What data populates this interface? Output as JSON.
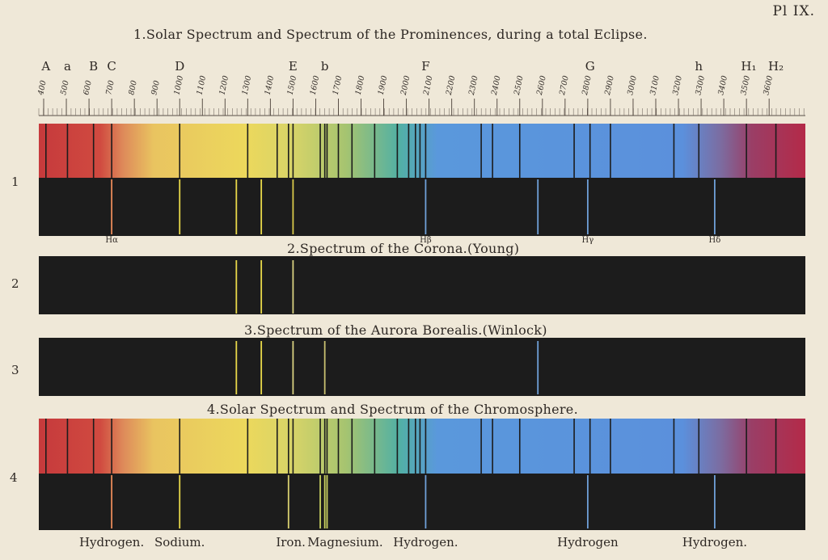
{
  "plate_label": "Pl IX.",
  "headings": [
    "1.Solar Spectrum and Spectrum of the Prominences, during a total Eclipse.",
    "2.Spectrum of the Corona.(Young)",
    "3.Spectrum of the Aurora Borealis.(Winlock)",
    "4.Solar Spectrum and Spectrum of the Chromosphere."
  ],
  "row_numbers": [
    "1",
    "2",
    "3",
    "4"
  ],
  "scale": {
    "min": 400,
    "max": 3660,
    "ticks": [
      400,
      500,
      600,
      700,
      800,
      900,
      1000,
      1100,
      1200,
      1300,
      1400,
      1500,
      1600,
      1700,
      1800,
      1900,
      2000,
      2100,
      2200,
      2300,
      2400,
      2500,
      2600,
      2700,
      2800,
      2900,
      3000,
      3100,
      3200,
      3300,
      3400,
      3500,
      3600
    ]
  },
  "fraunhofer_letters": [
    {
      "label": "A",
      "pos": 410
    },
    {
      "label": "a",
      "pos": 505
    },
    {
      "label": "B",
      "pos": 620
    },
    {
      "label": "C",
      "pos": 700
    },
    {
      "label": "D",
      "pos": 1000
    },
    {
      "label": "E",
      "pos": 1500
    },
    {
      "label": "b",
      "pos": 1640
    },
    {
      "label": "F",
      "pos": 2085
    },
    {
      "label": "G",
      "pos": 2810
    },
    {
      "label": "h",
      "pos": 3290
    },
    {
      "label": "H₁",
      "pos": 3510
    },
    {
      "label": "H₂",
      "pos": 3630
    }
  ],
  "hydrogen_labels": [
    {
      "label": "Hα",
      "pos": 700
    },
    {
      "label": "Hβ",
      "pos": 2085
    },
    {
      "label": "Hγ",
      "pos": 2800
    },
    {
      "label": "Hδ",
      "pos": 3360
    }
  ],
  "solar_lines": [
    410,
    505,
    620,
    700,
    1000,
    1300,
    1430,
    1480,
    1500,
    1620,
    1640,
    1650,
    1700,
    1760,
    1860,
    1960,
    2010,
    2040,
    2060,
    2085,
    2330,
    2380,
    2500,
    2740,
    2810,
    2900,
    3180,
    3290,
    3500,
    3630
  ],
  "row1_emission": [
    {
      "pos": 700,
      "color": "#e88a5a"
    },
    {
      "pos": 1000,
      "color": "#e8d84a"
    },
    {
      "pos": 1250,
      "color": "#e8d84a"
    },
    {
      "pos": 1360,
      "color": "#e8d84a"
    },
    {
      "pos": 1500,
      "color": "#d8c84a"
    },
    {
      "pos": 2085,
      "color": "#6fa0d8"
    },
    {
      "pos": 2580,
      "color": "#6fa0d8"
    },
    {
      "pos": 2800,
      "color": "#6fa0d8"
    },
    {
      "pos": 3360,
      "color": "#6fa0d8"
    }
  ],
  "row2_emission": [
    {
      "pos": 1250,
      "color": "#e8d84a"
    },
    {
      "pos": 1360,
      "color": "#e8d84a"
    },
    {
      "pos": 1500,
      "color": "#d8d080"
    }
  ],
  "row3_emission": [
    {
      "pos": 1250,
      "color": "#e8d84a"
    },
    {
      "pos": 1360,
      "color": "#e8d84a"
    },
    {
      "pos": 1500,
      "color": "#d8d080"
    },
    {
      "pos": 1640,
      "color": "#c8c070"
    },
    {
      "pos": 2580,
      "color": "#6fa0d8"
    }
  ],
  "row4_emission": [
    {
      "pos": 700,
      "color": "#e88a5a"
    },
    {
      "pos": 1000,
      "color": "#e8d84a"
    },
    {
      "pos": 1480,
      "color": "#d8d070"
    },
    {
      "pos": 1620,
      "color": "#c8d060"
    },
    {
      "pos": 1640,
      "color": "#c8d060"
    },
    {
      "pos": 1650,
      "color": "#c8d060"
    },
    {
      "pos": 2085,
      "color": "#6fa0d8"
    },
    {
      "pos": 2800,
      "color": "#6fa0d8"
    },
    {
      "pos": 3360,
      "color": "#6fa0d8"
    }
  ],
  "element_labels": [
    {
      "label": "Hydrogen.",
      "pos": 700
    },
    {
      "label": "Sodium.",
      "pos": 1000
    },
    {
      "label": "Iron.",
      "pos": 1490
    },
    {
      "label": "Magnesium.",
      "pos": 1730
    },
    {
      "label": "Hydrogen.",
      "pos": 2085
    },
    {
      "label": "Hydrogen",
      "pos": 2800
    },
    {
      "label": "Hydrogen.",
      "pos": 3360
    }
  ],
  "colors": {
    "paper": "#efe8d8",
    "dark_band": "#1c1c1c",
    "red": "#c8353a",
    "orange": "#e0874a",
    "yellow": "#ecd65a",
    "green": "#9cc070",
    "teal": "#4fb0a8",
    "blue": "#5a90dc",
    "violet": "#8a3e68",
    "crimson": "#b02a44"
  }
}
